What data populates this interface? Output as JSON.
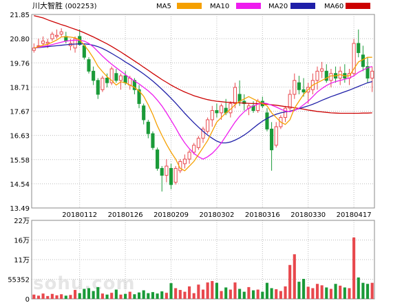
{
  "title": "川大智胜",
  "code": "(002253)",
  "watermark": "sohu.com",
  "colors": {
    "up": "#e8484d",
    "down": "#1a9a38",
    "ma5": "#f5a000",
    "ma10": "#ee1cee",
    "ma20": "#1f1fa8",
    "ma60": "#cc0000",
    "grid": "#bbbbbb"
  },
  "chart_data": [
    {
      "type": "candlestick",
      "legend": [
        "MA5",
        "MA10",
        "MA20",
        "MA60"
      ],
      "y_ticks": [
        "21.85",
        "20.80",
        "19.76",
        "18.71",
        "17.67",
        "16.63",
        "15.58",
        "14.54",
        "13.49"
      ],
      "ylim": [
        13.49,
        21.85
      ],
      "x_ticks": [
        {
          "index": 10,
          "label": "20180112"
        },
        {
          "index": 20,
          "label": "20180126"
        },
        {
          "index": 30,
          "label": "20180209"
        },
        {
          "index": 40,
          "label": "20180302"
        },
        {
          "index": 50,
          "label": "20180316"
        },
        {
          "index": 60,
          "label": "20180330"
        },
        {
          "index": 70,
          "label": "20180417"
        }
      ],
      "ohlc": [
        [
          20.3,
          20.6,
          20.2,
          20.4
        ],
        [
          20.5,
          20.8,
          20.4,
          20.5
        ],
        [
          20.6,
          20.9,
          20.5,
          20.7
        ],
        [
          20.6,
          20.8,
          20.4,
          20.65
        ],
        [
          20.8,
          21.1,
          20.7,
          21.0
        ],
        [
          20.9,
          21.2,
          20.8,
          20.95
        ],
        [
          21.0,
          21.25,
          20.9,
          21.1
        ],
        [
          20.9,
          21.1,
          20.6,
          20.7
        ],
        [
          20.5,
          20.8,
          20.3,
          20.6
        ],
        [
          20.4,
          20.9,
          20.2,
          20.8
        ],
        [
          20.9,
          21.2,
          20.5,
          20.55
        ],
        [
          20.5,
          20.6,
          19.9,
          20.0
        ],
        [
          19.9,
          20.0,
          19.3,
          19.4
        ],
        [
          19.4,
          19.6,
          18.8,
          19.0
        ],
        [
          19.0,
          19.1,
          18.2,
          18.4
        ],
        [
          18.6,
          19.2,
          18.5,
          19.1
        ],
        [
          19.1,
          19.3,
          18.7,
          18.9
        ],
        [
          18.9,
          19.6,
          18.8,
          19.5
        ],
        [
          19.3,
          19.5,
          18.9,
          19.0
        ],
        [
          19.0,
          19.3,
          18.6,
          19.2
        ],
        [
          19.2,
          19.4,
          18.8,
          18.9
        ],
        [
          18.8,
          19.2,
          18.6,
          19.1
        ],
        [
          19.0,
          19.1,
          18.4,
          18.6
        ],
        [
          18.6,
          18.8,
          17.8,
          18.0
        ],
        [
          17.9,
          18.0,
          17.1,
          17.3
        ],
        [
          17.2,
          17.3,
          16.5,
          16.7
        ],
        [
          16.7,
          16.8,
          16.0,
          16.1
        ],
        [
          16.0,
          16.1,
          15.1,
          15.2
        ],
        [
          15.2,
          15.3,
          14.2,
          14.9
        ],
        [
          14.9,
          15.6,
          14.6,
          15.3
        ],
        [
          15.2,
          15.4,
          14.3,
          14.5
        ],
        [
          14.6,
          15.3,
          14.5,
          15.2
        ],
        [
          15.1,
          15.6,
          15.0,
          15.5
        ],
        [
          15.4,
          15.8,
          15.2,
          15.6
        ],
        [
          15.6,
          16.0,
          15.4,
          15.9
        ],
        [
          15.9,
          16.3,
          15.8,
          16.2
        ],
        [
          16.1,
          16.6,
          16.0,
          16.5
        ],
        [
          16.5,
          17.0,
          16.3,
          16.9
        ],
        [
          16.8,
          17.4,
          16.7,
          17.3
        ],
        [
          17.3,
          17.9,
          17.0,
          17.7
        ],
        [
          17.7,
          18.0,
          17.4,
          17.6
        ],
        [
          17.6,
          18.0,
          17.3,
          17.9
        ],
        [
          17.8,
          18.2,
          17.5,
          17.6
        ],
        [
          17.6,
          18.1,
          17.4,
          18.0
        ],
        [
          18.0,
          18.9,
          17.8,
          18.7
        ],
        [
          18.4,
          19.0,
          17.9,
          18.1
        ],
        [
          18.1,
          18.4,
          17.7,
          18.0
        ],
        [
          17.8,
          18.0,
          17.5,
          17.9
        ],
        [
          17.9,
          18.1,
          17.6,
          17.7
        ],
        [
          17.7,
          18.2,
          17.6,
          18.1
        ],
        [
          18.1,
          18.3,
          17.8,
          17.9
        ],
        [
          17.6,
          17.8,
          16.8,
          16.9
        ],
        [
          16.9,
          17.2,
          15.1,
          16.0
        ],
        [
          16.2,
          17.2,
          16.1,
          17.0
        ],
        [
          17.0,
          17.5,
          16.9,
          17.4
        ],
        [
          17.4,
          17.9,
          17.2,
          17.8
        ],
        [
          17.8,
          18.6,
          17.7,
          18.4
        ],
        [
          18.4,
          19.3,
          18.2,
          19.0
        ],
        [
          18.9,
          19.2,
          18.4,
          18.6
        ],
        [
          18.6,
          19.1,
          18.3,
          18.5
        ],
        [
          18.5,
          18.9,
          18.0,
          18.7
        ],
        [
          18.6,
          19.3,
          18.4,
          19.0
        ],
        [
          19.0,
          19.6,
          18.6,
          19.4
        ],
        [
          19.4,
          19.8,
          19.1,
          19.5
        ],
        [
          19.4,
          19.7,
          18.9,
          19.0
        ],
        [
          19.0,
          19.5,
          18.7,
          19.3
        ],
        [
          19.3,
          19.6,
          18.9,
          19.1
        ],
        [
          19.1,
          19.6,
          18.8,
          19.4
        ],
        [
          19.3,
          19.7,
          18.9,
          19.1
        ],
        [
          19.1,
          19.5,
          18.8,
          19.3
        ],
        [
          19.3,
          20.8,
          19.2,
          20.6
        ],
        [
          20.6,
          21.2,
          20.0,
          20.2
        ],
        [
          20.1,
          20.5,
          19.4,
          19.6
        ],
        [
          19.6,
          20.0,
          18.9,
          19.1
        ],
        [
          19.1,
          19.6,
          18.5,
          19.4
        ]
      ],
      "ma5": [
        20.4,
        20.45,
        20.53,
        20.56,
        20.65,
        20.75,
        20.88,
        20.89,
        20.87,
        20.84,
        20.75,
        20.53,
        20.27,
        19.97,
        19.61,
        19.38,
        19.16,
        19.0,
        18.8,
        18.94,
        18.9,
        18.8,
        18.7,
        18.55,
        18.32,
        17.95,
        17.53,
        17.04,
        16.63,
        16.24,
        15.9,
        15.6,
        15.2,
        15.1,
        15.3,
        15.5,
        15.8,
        16.1,
        16.4,
        16.8,
        17.2,
        17.4,
        17.6,
        17.75,
        17.95,
        18.1,
        18.2,
        18.3,
        18.2,
        18.1,
        18.0,
        17.9,
        17.6,
        17.4,
        17.2,
        17.1,
        17.3,
        17.8,
        18.1,
        18.4,
        18.6,
        18.8,
        18.9,
        19.0,
        19.1,
        19.2,
        19.2,
        19.25,
        19.2,
        19.2,
        19.5,
        19.8,
        19.9,
        20.0,
        20.0
      ],
      "ma10": [
        20.4,
        20.43,
        20.47,
        20.5,
        20.55,
        20.6,
        20.65,
        20.7,
        20.72,
        20.74,
        20.73,
        20.7,
        20.6,
        20.45,
        20.25,
        20.05,
        19.87,
        19.7,
        19.55,
        19.4,
        19.25,
        19.1,
        18.98,
        18.85,
        18.7,
        18.55,
        18.37,
        18.15,
        17.9,
        17.6,
        17.28,
        16.95,
        16.6,
        16.3,
        16.05,
        15.85,
        15.7,
        15.6,
        15.7,
        15.85,
        16.05,
        16.3,
        16.6,
        16.9,
        17.2,
        17.45,
        17.65,
        17.8,
        17.9,
        17.98,
        18.03,
        18.0,
        17.93,
        17.85,
        17.76,
        17.68,
        17.65,
        17.7,
        17.8,
        17.95,
        18.1,
        18.3,
        18.5,
        18.65,
        18.78,
        18.88,
        18.95,
        19.0,
        19.05,
        19.1,
        19.2,
        19.35,
        19.45,
        19.55,
        19.6
      ],
      "ma20": [
        20.4,
        20.42,
        20.44,
        20.46,
        20.48,
        20.5,
        20.52,
        20.54,
        20.56,
        20.57,
        20.58,
        20.58,
        20.56,
        20.52,
        20.46,
        20.38,
        20.28,
        20.17,
        20.05,
        19.93,
        19.8,
        19.68,
        19.55,
        19.42,
        19.28,
        19.13,
        18.97,
        18.8,
        18.62,
        18.43,
        18.23,
        18.02,
        17.8,
        17.58,
        17.37,
        17.17,
        16.98,
        16.8,
        16.64,
        16.5,
        16.38,
        16.3,
        16.3,
        16.34,
        16.42,
        16.52,
        16.64,
        16.78,
        16.94,
        17.1,
        17.24,
        17.36,
        17.46,
        17.54,
        17.6,
        17.64,
        17.67,
        17.72,
        17.78,
        17.84,
        17.9,
        17.97,
        18.05,
        18.14,
        18.22,
        18.3,
        18.37,
        18.44,
        18.51,
        18.58,
        18.66,
        18.74,
        18.82,
        18.9,
        18.95
      ],
      "ma60": [
        21.8,
        21.75,
        21.7,
        21.62,
        21.55,
        21.48,
        21.41,
        21.35,
        21.28,
        21.21,
        21.14,
        21.06,
        20.97,
        20.88,
        20.78,
        20.68,
        20.58,
        20.47,
        20.35,
        20.23,
        20.1,
        19.97,
        19.84,
        19.71,
        19.57,
        19.44,
        19.3,
        19.17,
        19.04,
        18.92,
        18.8,
        18.69,
        18.59,
        18.5,
        18.42,
        18.34,
        18.28,
        18.22,
        18.17,
        18.13,
        18.1,
        18.08,
        18.06,
        18.05,
        18.04,
        18.03,
        18.02,
        18.01,
        18.0,
        18.0,
        17.99,
        17.97,
        17.95,
        17.93,
        17.9,
        17.87,
        17.85,
        17.82,
        17.79,
        17.76,
        17.72,
        17.69,
        17.66,
        17.64,
        17.62,
        17.6,
        17.59,
        17.58,
        17.58,
        17.58,
        17.58,
        17.58,
        17.59,
        17.59,
        17.6
      ]
    },
    {
      "type": "bar",
      "name": "volume",
      "y_ticks": [
        "22万",
        "16万",
        "11万",
        "55352",
        "0"
      ],
      "ylim": [
        0,
        220000
      ],
      "volume": [
        12000,
        9000,
        15000,
        8000,
        14000,
        10000,
        13000,
        9000,
        11000,
        25000,
        16000,
        28000,
        30000,
        22000,
        33000,
        15000,
        12000,
        17000,
        26000,
        12000,
        14000,
        20000,
        13000,
        18000,
        24000,
        16000,
        19000,
        15000,
        21000,
        17000,
        44000,
        30000,
        25000,
        20000,
        35000,
        16000,
        40000,
        26000,
        46000,
        50000,
        45000,
        22000,
        32000,
        26000,
        46000,
        28000,
        20000,
        33000,
        24000,
        26000,
        20000,
        45000,
        30000,
        27000,
        22000,
        35000,
        95000,
        125000,
        48000,
        56000,
        34000,
        30000,
        42000,
        38000,
        32000,
        28000,
        42000,
        37000,
        32000,
        30000,
        172000,
        60000,
        45000,
        42000,
        45000
      ]
    }
  ]
}
